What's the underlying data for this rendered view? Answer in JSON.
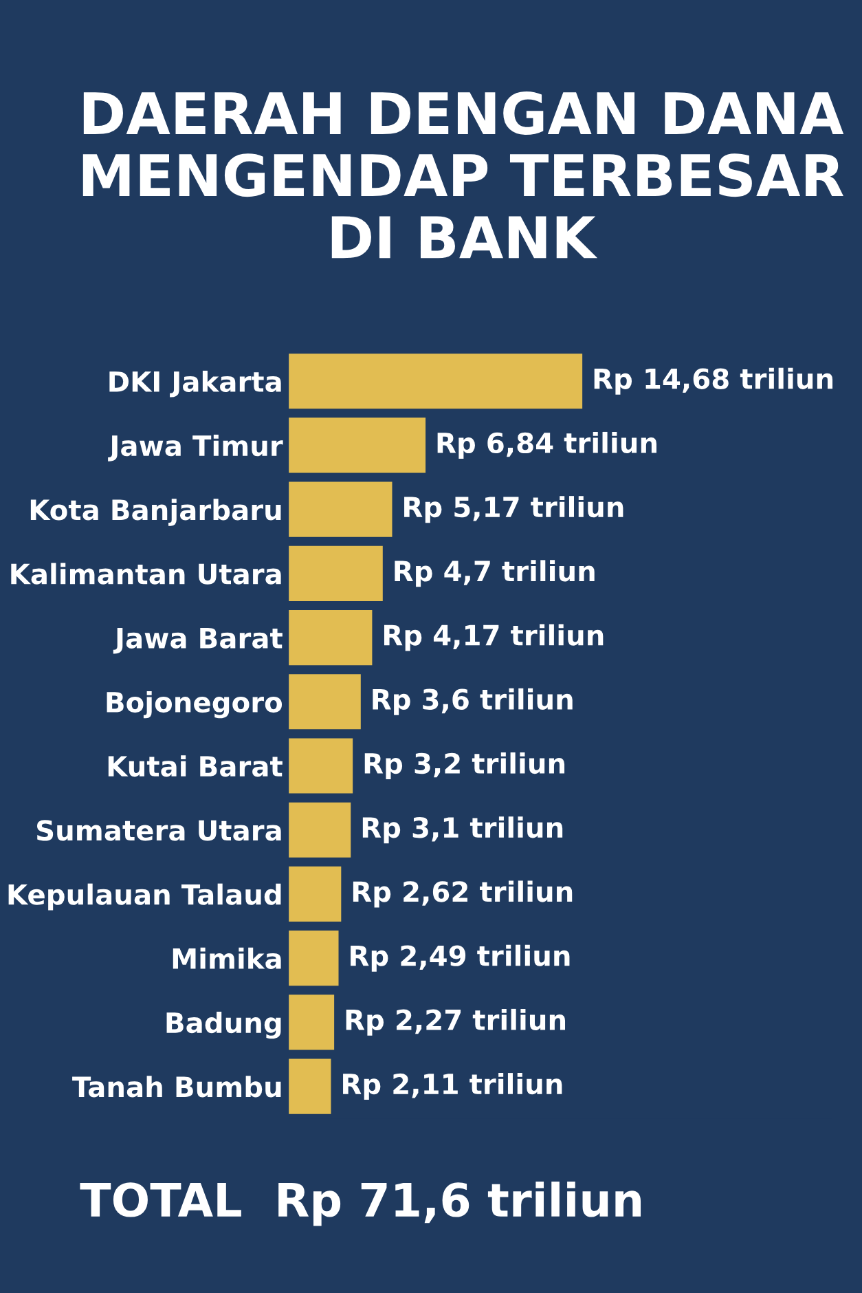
{
  "chart_data": {
    "type": "bar",
    "orientation": "horizontal",
    "title": "DAERAH DENGAN DANA\nMENGENDAP TERBESAR\nDI BANK",
    "categories": [
      "DKI Jakarta",
      "Jawa Timur",
      "Kota Banjarbaru",
      "Kalimantan Utara",
      "Jawa Barat",
      "Bojonegoro",
      "Kutai Barat",
      "Sumatera Utara",
      "Kepulauan Talaud",
      "Mimika",
      "Badung",
      "Tanah Bumbu"
    ],
    "values": [
      14.68,
      6.84,
      5.17,
      4.7,
      4.17,
      3.6,
      3.2,
      3.1,
      2.62,
      2.49,
      2.27,
      2.11
    ],
    "value_labels": [
      "Rp 14,68 triliun",
      "Rp 6,84 triliun",
      "Rp 5,17 triliun",
      "Rp 4,7 triliun",
      "Rp 4,17 triliun",
      "Rp 3,6 triliun",
      "Rp 3,2 triliun",
      "Rp 3,1 triliun",
      "Rp 2,62 triliun",
      "Rp 2,49 triliun",
      "Rp 2,27 triliun",
      "Rp 2,11 triliun"
    ],
    "color": "#e2bd52",
    "annotations": [
      "TOTAL  Rp 71,6 triliun"
    ],
    "grid": false,
    "legend": false,
    "tick_labels": "y"
  }
}
